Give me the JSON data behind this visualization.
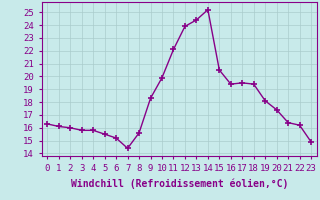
{
  "x": [
    0,
    1,
    2,
    3,
    4,
    5,
    6,
    7,
    8,
    9,
    10,
    11,
    12,
    13,
    14,
    15,
    16,
    17,
    18,
    19,
    20,
    21,
    22,
    23
  ],
  "y": [
    16.3,
    16.1,
    16.0,
    15.8,
    15.8,
    15.5,
    15.2,
    14.4,
    15.6,
    18.3,
    19.9,
    22.1,
    23.9,
    24.4,
    25.2,
    20.5,
    19.4,
    19.5,
    19.4,
    18.1,
    17.4,
    16.4,
    16.2,
    14.9
  ],
  "line_color": "#880088",
  "marker": "+",
  "marker_size": 4,
  "marker_lw": 1.2,
  "xlabel": "Windchill (Refroidissement éolien,°C)",
  "xlabel_fontsize": 7,
  "xtick_labels": [
    "0",
    "1",
    "2",
    "3",
    "4",
    "5",
    "6",
    "7",
    "8",
    "9",
    "10",
    "11",
    "12",
    "13",
    "14",
    "15",
    "16",
    "17",
    "18",
    "19",
    "20",
    "21",
    "22",
    "23"
  ],
  "ytick_min": 14,
  "ytick_max": 25,
  "ylim": [
    13.8,
    25.8
  ],
  "xlim": [
    -0.5,
    23.5
  ],
  "grid_color": "#aacccc",
  "bg_color": "#c8eaea",
  "tick_fontsize": 6.5,
  "linewidth": 1.0
}
